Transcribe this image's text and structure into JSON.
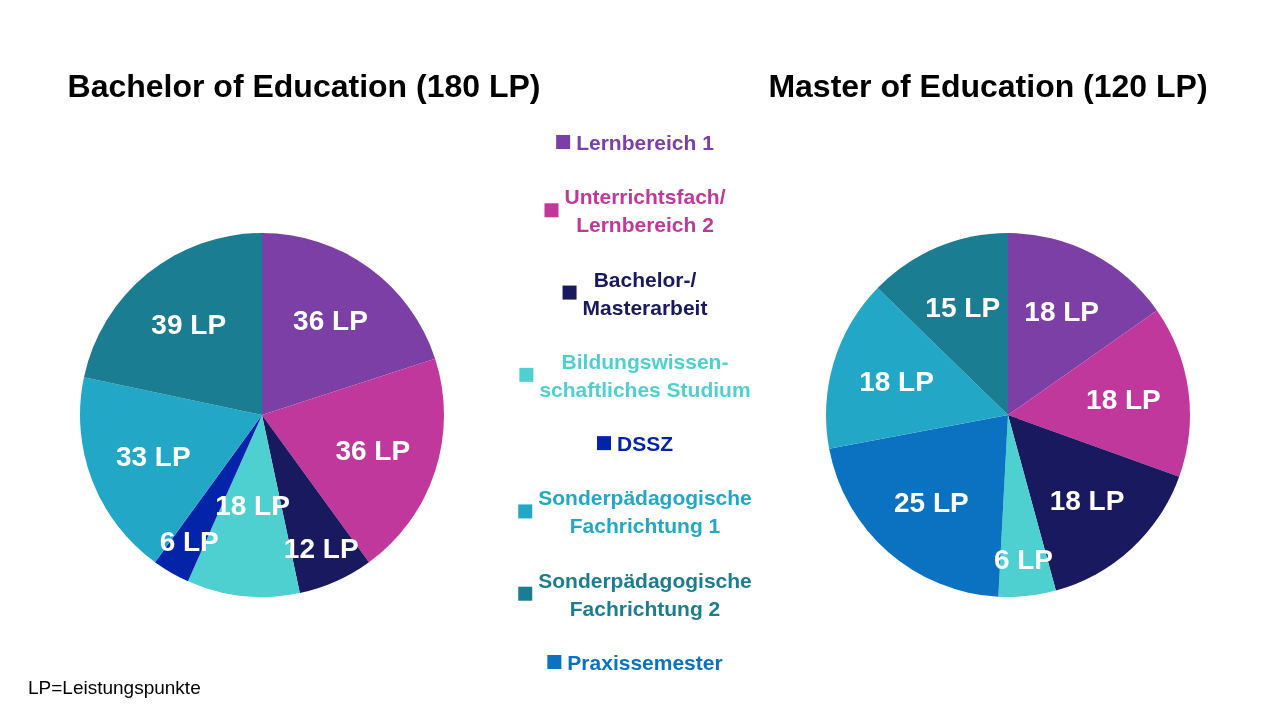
{
  "chart_data": [
    {
      "type": "pie",
      "title": "Bachelor of Education (180 LP)",
      "categories": [
        "Lernbereich 1",
        "Unterrichtsfach/\nLernbereich 2",
        "Bachelor-/\nMasterarbeit",
        "Bildungswissen-\nschaftliches Studium",
        "DSSZ",
        "Sonderpädagogische\nFachrichtung 1",
        "Sonderpädagogische\nFachrichtung 2"
      ],
      "values": [
        36,
        36,
        12,
        18,
        6,
        33,
        39
      ],
      "colors": [
        "#7b3fa6",
        "#c0389c",
        "#18195e",
        "#4fd0d0",
        "#0324a8",
        "#22a7c6",
        "#1a7d91"
      ],
      "value_labels": [
        "36 LP",
        "36 LP",
        "12 LP",
        "18 LP",
        "6 LP",
        "33 LP",
        "39 LP"
      ],
      "legend": "right",
      "annotations": [
        "LP=Leistungspunkte"
      ]
    },
    {
      "type": "pie",
      "title": "Master of Education (120 LP)",
      "categories": [
        null,
        null,
        null,
        null,
        "Praxissemester",
        null,
        null
      ],
      "values": [
        18,
        18,
        18,
        6,
        25,
        18,
        15
      ],
      "colors": [
        "#7b3fa6",
        "#c0389c",
        "#18195e",
        "#4fd0d0",
        "#0a72c0",
        "#22a7c6",
        "#1a7d91"
      ],
      "value_labels": [
        "18 LP",
        "18 LP",
        "18 LP",
        "6 LP",
        "25 LP",
        "18 LP",
        "15 LP"
      ],
      "legend": "left"
    }
  ]
}
